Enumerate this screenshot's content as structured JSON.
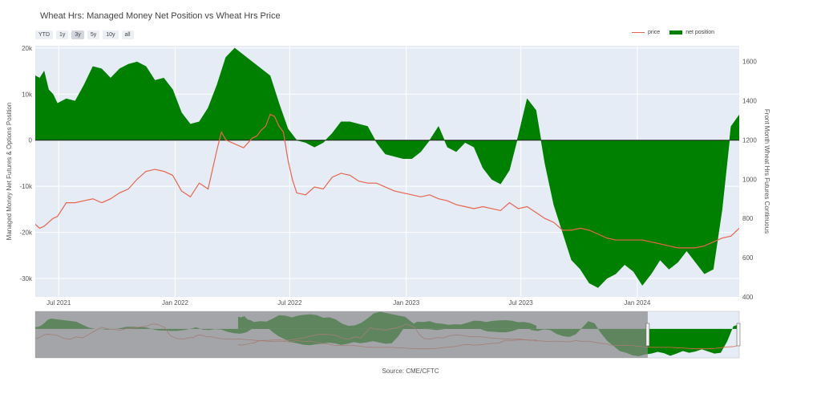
{
  "title": "Wheat Hrs: Managed Money Net Position vs Wheat Hrs Price",
  "range_selector": [
    "YTD",
    "1y",
    "3y",
    "5y",
    "10y",
    "all"
  ],
  "range_selected": "3y",
  "legend": {
    "price": "price",
    "net": "net position"
  },
  "source": "Source: CME/CFTC",
  "colors": {
    "price": "#e8644c",
    "net": "#008000",
    "plot_bg": "#e5ecf6",
    "slider_mask": "#888888"
  },
  "chart_data": {
    "type": "area",
    "title": "Wheat Hrs: Managed Money Net Position vs Wheat Hrs Price",
    "xlabel": "",
    "y_left_label": "Managed Money Net Futures & Options Position",
    "y_right_label": "Front Month Wheat Hrs Futures Continuous",
    "y_left_range": [
      -34000,
      20500
    ],
    "y_right_range": [
      400,
      1680
    ],
    "y_left_ticks": [
      20000,
      10000,
      0,
      -10000,
      -20000,
      -30000
    ],
    "y_left_ticklabels": [
      "20k",
      "10k",
      "0",
      "-10k",
      "-20k",
      "-30k"
    ],
    "y_right_ticks": [
      1600,
      1400,
      1200,
      1000,
      800,
      600,
      400
    ],
    "x_range": [
      "2021-05-25",
      "2024-06-10"
    ],
    "x_ticks": [
      "2021-07-01",
      "2022-01-01",
      "2022-07-01",
      "2023-01-01",
      "2023-07-01",
      "2024-01-01"
    ],
    "x_ticklabels": [
      "Jul 2021",
      "Jan 2022",
      "Jul 2022",
      "Jan 2023",
      "Jul 2023",
      "Jan 2024"
    ],
    "series": [
      {
        "name": "net position",
        "kind": "area",
        "x": [
          "2021-05-25",
          "2021-06-01",
          "2021-06-08",
          "2021-06-15",
          "2021-06-22",
          "2021-06-29",
          "2021-07-13",
          "2021-07-27",
          "2021-08-10",
          "2021-08-24",
          "2021-09-07",
          "2021-09-21",
          "2021-10-05",
          "2021-10-19",
          "2021-11-02",
          "2021-11-16",
          "2021-11-30",
          "2021-12-14",
          "2021-12-28",
          "2022-01-11",
          "2022-01-25",
          "2022-02-08",
          "2022-02-22",
          "2022-03-08",
          "2022-03-22",
          "2022-04-05",
          "2022-04-19",
          "2022-05-03",
          "2022-05-17",
          "2022-05-31",
          "2022-06-14",
          "2022-06-28",
          "2022-07-12",
          "2022-07-26",
          "2022-08-09",
          "2022-08-23",
          "2022-09-06",
          "2022-09-20",
          "2022-10-04",
          "2022-10-18",
          "2022-11-01",
          "2022-11-15",
          "2022-11-29",
          "2022-12-13",
          "2022-12-27",
          "2023-01-10",
          "2023-01-24",
          "2023-02-07",
          "2023-02-21",
          "2023-03-07",
          "2023-03-21",
          "2023-04-04",
          "2023-04-18",
          "2023-05-02",
          "2023-05-16",
          "2023-05-30",
          "2023-06-13",
          "2023-06-27",
          "2023-07-11",
          "2023-07-25",
          "2023-08-08",
          "2023-08-22",
          "2023-09-05",
          "2023-09-19",
          "2023-10-03",
          "2023-10-17",
          "2023-10-31",
          "2023-11-14",
          "2023-11-28",
          "2023-12-12",
          "2023-12-26",
          "2024-01-09",
          "2024-01-23",
          "2024-02-06",
          "2024-02-20",
          "2024-03-05",
          "2024-03-19",
          "2024-04-02",
          "2024-04-16",
          "2024-04-30",
          "2024-05-14",
          "2024-05-28",
          "2024-06-10"
        ],
        "values": [
          14000,
          13500,
          15000,
          11000,
          10000,
          8000,
          9000,
          8500,
          12000,
          16000,
          15500,
          13500,
          15500,
          16500,
          17000,
          16000,
          13000,
          13500,
          11000,
          6000,
          3500,
          4000,
          7000,
          12000,
          18000,
          20000,
          18500,
          17000,
          15500,
          14000,
          8000,
          2500,
          0,
          -500,
          -1500,
          -500,
          1500,
          4000,
          4000,
          3500,
          3000,
          -500,
          -3000,
          -3500,
          -4000,
          -4000,
          -2500,
          0,
          3000,
          -1500,
          -2500,
          -500,
          -1500,
          -6000,
          -8500,
          -9500,
          -6500,
          1000,
          9000,
          6500,
          -5000,
          -14000,
          -20000,
          -26000,
          -28000,
          -31000,
          -32000,
          -30000,
          -29000,
          -27000,
          -28500,
          -31500,
          -29000,
          -26000,
          -28000,
          -26500,
          -24000,
          -26500,
          -29000,
          -28000,
          -15000,
          3000,
          5500
        ]
      },
      {
        "name": "price",
        "kind": "line",
        "x": [
          "2021-05-25",
          "2021-06-01",
          "2021-06-08",
          "2021-06-15",
          "2021-06-22",
          "2021-06-29",
          "2021-07-13",
          "2021-07-27",
          "2021-08-10",
          "2021-08-24",
          "2021-09-07",
          "2021-09-21",
          "2021-10-05",
          "2021-10-19",
          "2021-11-02",
          "2021-11-16",
          "2021-11-30",
          "2021-12-14",
          "2021-12-28",
          "2022-01-11",
          "2022-01-25",
          "2022-02-08",
          "2022-02-22",
          "2022-03-01",
          "2022-03-08",
          "2022-03-15",
          "2022-03-22",
          "2022-04-05",
          "2022-04-19",
          "2022-05-03",
          "2022-05-10",
          "2022-05-17",
          "2022-05-24",
          "2022-05-31",
          "2022-06-07",
          "2022-06-14",
          "2022-06-21",
          "2022-06-28",
          "2022-07-05",
          "2022-07-12",
          "2022-07-26",
          "2022-08-09",
          "2022-08-23",
          "2022-09-06",
          "2022-09-20",
          "2022-10-04",
          "2022-10-18",
          "2022-11-01",
          "2022-11-15",
          "2022-11-29",
          "2022-12-13",
          "2022-12-27",
          "2023-01-10",
          "2023-01-24",
          "2023-02-07",
          "2023-02-21",
          "2023-03-07",
          "2023-03-21",
          "2023-04-04",
          "2023-04-18",
          "2023-05-02",
          "2023-05-16",
          "2023-05-30",
          "2023-06-13",
          "2023-06-27",
          "2023-07-11",
          "2023-07-25",
          "2023-08-08",
          "2023-08-22",
          "2023-09-05",
          "2023-09-19",
          "2023-10-03",
          "2023-10-17",
          "2023-10-31",
          "2023-11-14",
          "2023-11-28",
          "2023-12-12",
          "2023-12-26",
          "2024-01-09",
          "2024-01-23",
          "2024-02-06",
          "2024-02-20",
          "2024-03-05",
          "2024-03-19",
          "2024-04-02",
          "2024-04-16",
          "2024-04-30",
          "2024-05-14",
          "2024-05-28",
          "2024-06-10"
        ],
        "values": [
          770,
          750,
          760,
          780,
          800,
          810,
          880,
          880,
          890,
          900,
          880,
          900,
          930,
          950,
          1000,
          1040,
          1050,
          1040,
          1020,
          940,
          910,
          980,
          950,
          1050,
          1150,
          1240,
          1200,
          1180,
          1160,
          1210,
          1220,
          1250,
          1270,
          1330,
          1320,
          1270,
          1240,
          1100,
          1000,
          930,
          920,
          960,
          950,
          1010,
          1030,
          1020,
          990,
          980,
          980,
          960,
          940,
          930,
          920,
          910,
          920,
          900,
          890,
          870,
          860,
          850,
          860,
          850,
          840,
          880,
          850,
          860,
          830,
          800,
          780,
          740,
          740,
          750,
          740,
          720,
          700,
          690,
          690,
          690,
          690,
          680,
          670,
          660,
          650,
          650,
          650,
          660,
          680,
          700,
          710,
          750
        ]
      }
    ]
  }
}
